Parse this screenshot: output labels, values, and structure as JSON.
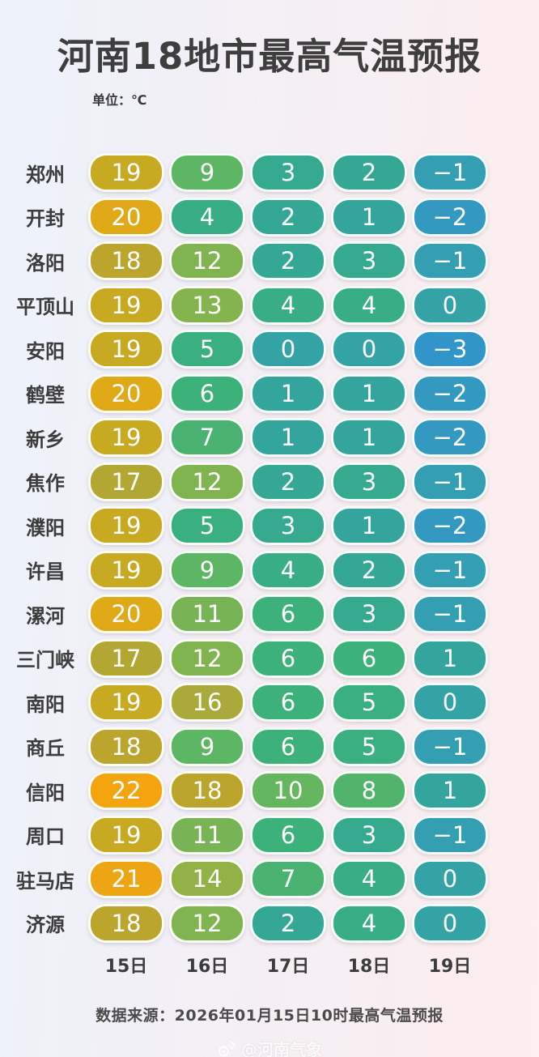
{
  "title": "河南18地市最高气温预报",
  "unit_label": "单位：℃",
  "source_note": "数据来源：2026年01月15日10时最高气温预报",
  "watermark": {
    "handle": "@河南气象",
    "icon": "weibo-icon"
  },
  "background": {
    "left": "#edf2fb",
    "right": "#fdeeef"
  },
  "pill_text_color": "#ffffff",
  "temp_colors": {
    "-3": "#3295ca",
    "-2": "#3399c1",
    "-1": "#349fb3",
    "0": "#34a3a6",
    "1": "#34a59c",
    "2": "#35a895",
    "3": "#36aa8e",
    "4": "#38ad86",
    "5": "#3aaf80",
    "6": "#3cb27a",
    "7": "#4ab371",
    "8": "#52b46b",
    "9": "#5cb663",
    "10": "#64b65f",
    "11": "#78b455",
    "12": "#80b450",
    "13": "#84b44d",
    "14": "#92b147",
    "16": "#a9a93c",
    "17": "#b3a734",
    "18": "#bba52c",
    "19": "#c8a922",
    "20": "#e0a918",
    "21": "#eda513",
    "22": "#f4a40e"
  },
  "chart_data": {
    "type": "table",
    "title": "河南18地市最高气温预报",
    "unit": "℃",
    "columns": [
      "15日",
      "16日",
      "17日",
      "18日",
      "19日"
    ],
    "rows": [
      {
        "city": "郑州",
        "temps": [
          19,
          9,
          3,
          2,
          -1
        ]
      },
      {
        "city": "开封",
        "temps": [
          20,
          4,
          2,
          1,
          -2
        ]
      },
      {
        "city": "洛阳",
        "temps": [
          18,
          12,
          2,
          3,
          -1
        ]
      },
      {
        "city": "平顶山",
        "temps": [
          19,
          13,
          4,
          4,
          0
        ]
      },
      {
        "city": "安阳",
        "temps": [
          19,
          5,
          0,
          0,
          -3
        ]
      },
      {
        "city": "鹤壁",
        "temps": [
          20,
          6,
          1,
          1,
          -2
        ]
      },
      {
        "city": "新乡",
        "temps": [
          19,
          7,
          1,
          1,
          -2
        ]
      },
      {
        "city": "焦作",
        "temps": [
          17,
          12,
          2,
          3,
          -1
        ]
      },
      {
        "city": "濮阳",
        "temps": [
          19,
          5,
          3,
          1,
          -2
        ]
      },
      {
        "city": "许昌",
        "temps": [
          19,
          9,
          4,
          2,
          -1
        ]
      },
      {
        "city": "漯河",
        "temps": [
          20,
          11,
          6,
          3,
          -1
        ]
      },
      {
        "city": "三门峡",
        "temps": [
          17,
          12,
          6,
          6,
          1
        ]
      },
      {
        "city": "南阳",
        "temps": [
          19,
          16,
          6,
          5,
          0
        ]
      },
      {
        "city": "商丘",
        "temps": [
          18,
          9,
          6,
          5,
          -1
        ]
      },
      {
        "city": "信阳",
        "temps": [
          22,
          18,
          10,
          8,
          1
        ]
      },
      {
        "city": "周口",
        "temps": [
          19,
          11,
          6,
          3,
          -1
        ]
      },
      {
        "city": "驻马店",
        "temps": [
          21,
          14,
          7,
          4,
          0
        ]
      },
      {
        "city": "济源",
        "temps": [
          18,
          12,
          2,
          4,
          0
        ]
      }
    ]
  }
}
